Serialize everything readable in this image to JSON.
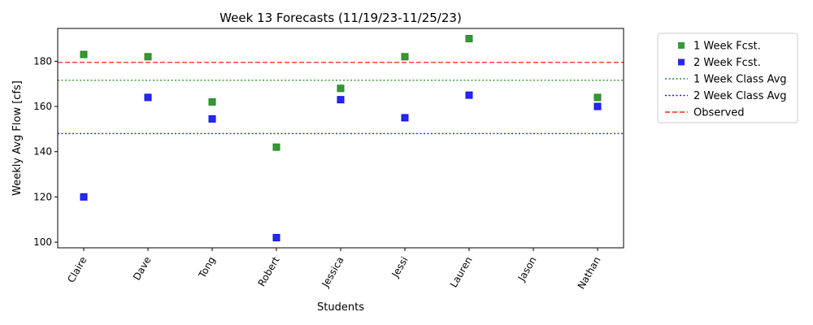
{
  "chart_data": {
    "type": "scatter",
    "title": "Week 13 Forecasts (11/19/23-11/25/23)",
    "xlabel": "Students",
    "ylabel": "Weekly Avg Flow [cfs]",
    "categories": [
      "Claire",
      "Dave",
      "Tong",
      "Robert",
      "Jessica",
      "Jessi",
      "Lauren",
      "Jason",
      "Nathan"
    ],
    "ylim": [
      97.5,
      194.5
    ],
    "yticks": [
      100,
      120,
      140,
      160,
      180
    ],
    "grid": false,
    "legend_position": "outside-top-right",
    "series": [
      {
        "name": "1 Week Fcst.",
        "marker": "square",
        "color": "#228B22",
        "values": [
          183,
          182,
          162,
          142,
          168,
          182,
          190,
          null,
          164
        ]
      },
      {
        "name": "2 Week Fcst.",
        "marker": "square",
        "color": "#1010EE",
        "values": [
          120,
          164,
          154.5,
          102,
          163,
          155,
          165,
          null,
          160
        ]
      }
    ],
    "reference_lines": [
      {
        "name": "1 Week Class Avg",
        "value": 171.6,
        "style": "dotted",
        "color": "#228B22"
      },
      {
        "name": "2 Week Class Avg",
        "value": 148,
        "style": "dotted",
        "color": "#1010EE"
      },
      {
        "name": "Observed",
        "value": 179.5,
        "style": "dashed",
        "color": "#FF2020"
      }
    ]
  }
}
